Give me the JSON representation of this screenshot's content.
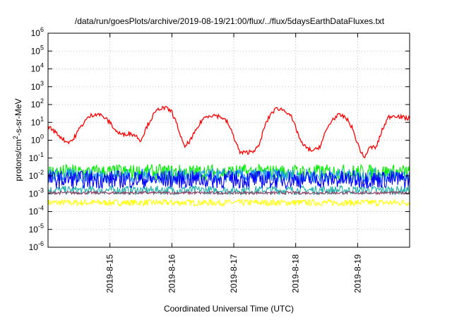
{
  "chart_data": {
    "type": "line",
    "title": "/data/run/goesPlots/archive/2019-08-19/21:00/flux/../flux/5daysEarthDataFluxes.txt",
    "xlabel": "Coordinated Universal Time (UTC)",
    "ylabel": {
      "prefix": "protons/cm",
      "sup": "2",
      "suffix": "-s-sr-MeV"
    },
    "yscale": "log",
    "ylim": [
      -6,
      6
    ],
    "xlim": [
      0,
      5.84
    ],
    "grid": true,
    "legend": "none",
    "yticks": [
      {
        "exp": -6,
        "base": "10",
        "sup": "-6"
      },
      {
        "exp": -5,
        "base": "10",
        "sup": "-5"
      },
      {
        "exp": -4,
        "base": "10",
        "sup": "-4"
      },
      {
        "exp": -3,
        "base": "10",
        "sup": "-3"
      },
      {
        "exp": -2,
        "base": "10",
        "sup": "-2"
      },
      {
        "exp": -1,
        "base": "10",
        "sup": "-1"
      },
      {
        "exp": 0,
        "base": "10",
        "sup": "0"
      },
      {
        "exp": 1,
        "base": "10",
        "sup": "1"
      },
      {
        "exp": 2,
        "base": "10",
        "sup": "2"
      },
      {
        "exp": 3,
        "base": "10",
        "sup": "3"
      },
      {
        "exp": 4,
        "base": "10",
        "sup": "4"
      },
      {
        "exp": 5,
        "base": "10",
        "sup": "5"
      },
      {
        "exp": 6,
        "base": "10",
        "sup": "6"
      }
    ],
    "xticks": [
      {
        "day": 1,
        "label": "2019-8-15"
      },
      {
        "day": 2,
        "label": "2019-8-16"
      },
      {
        "day": 3,
        "label": "2019-8-17"
      },
      {
        "day": 4,
        "label": "2019-8-18"
      },
      {
        "day": 5,
        "label": "2019-8-19"
      }
    ],
    "series": [
      {
        "color": "#ffff00",
        "x": [
          0,
          0.5,
          1,
          1.5,
          2,
          2.5,
          3,
          3.5,
          4,
          4.5,
          5,
          5.5,
          5.84
        ],
        "y": [
          -3.5,
          -3.5,
          -3.5,
          -3.5,
          -3.5,
          -3.5,
          -3.5,
          -3.5,
          -3.5,
          -3.5,
          -3.5,
          -3.5,
          -3.5
        ]
      },
      {
        "color": "#20b2aa",
        "x": [
          0,
          0.5,
          1,
          1.5,
          2,
          2.5,
          3,
          3.5,
          4,
          4.5,
          5,
          5.5,
          5.84
        ],
        "y": [
          -2.8,
          -2.8,
          -2.8,
          -2.8,
          -2.8,
          -2.8,
          -2.8,
          -2.8,
          -2.8,
          -2.8,
          -2.8,
          -2.8,
          -2.8
        ]
      },
      {
        "color": "#8b3a62",
        "x": [
          0,
          0.5,
          1,
          1.5,
          2,
          2.5,
          3,
          3.5,
          4,
          4.5,
          5,
          5.5,
          5.84
        ],
        "y": [
          -2.95,
          -2.95,
          -2.95,
          -2.95,
          -2.95,
          -2.95,
          -2.95,
          -2.95,
          -2.95,
          -2.95,
          -2.95,
          -2.95,
          -2.95
        ]
      },
      {
        "color": "#00ee00",
        "x": [
          0,
          0.5,
          1,
          1.5,
          2,
          2.5,
          3,
          3.5,
          4,
          4.5,
          5,
          5.5,
          5.84
        ],
        "y": [
          -1.8,
          -1.8,
          -1.8,
          -1.8,
          -1.8,
          -1.8,
          -1.8,
          -1.8,
          -1.8,
          -1.8,
          -1.8,
          -1.8,
          -1.8
        ]
      },
      {
        "color": "#1e90ff",
        "x": [
          0,
          0.5,
          1,
          1.5,
          2,
          2.5,
          3,
          3.5,
          4,
          4.5,
          5,
          5.5,
          5.84
        ],
        "y": [
          -2.0,
          -2.0,
          -2.0,
          -2.0,
          -2.0,
          -2.0,
          -2.0,
          -2.0,
          -2.0,
          -2.0,
          -2.0,
          -2.0,
          -2.0
        ]
      },
      {
        "color": "#0000ff",
        "x": [
          0,
          0.5,
          1,
          1.5,
          2,
          2.5,
          3,
          3.5,
          4,
          4.5,
          5,
          5.5,
          5.84
        ],
        "y": [
          -2.2,
          -2.2,
          -2.2,
          -2.2,
          -2.2,
          -2.2,
          -2.2,
          -2.2,
          -2.2,
          -2.2,
          -2.2,
          -2.2,
          -2.2
        ]
      },
      {
        "color": "#ff0000",
        "x": [
          0,
          0.1,
          0.2,
          0.3,
          0.4,
          0.5,
          0.6,
          0.7,
          0.8,
          0.9,
          1.0,
          1.1,
          1.2,
          1.3,
          1.4,
          1.5,
          1.6,
          1.7,
          1.8,
          1.9,
          2.0,
          2.1,
          2.2,
          2.3,
          2.4,
          2.5,
          2.6,
          2.7,
          2.8,
          2.9,
          3.0,
          3.1,
          3.2,
          3.3,
          3.4,
          3.5,
          3.6,
          3.7,
          3.8,
          3.9,
          4.0,
          4.1,
          4.2,
          4.3,
          4.4,
          4.5,
          4.6,
          4.7,
          4.8,
          4.9,
          5.0,
          5.1,
          5.2,
          5.3,
          5.4,
          5.5,
          5.6,
          5.7,
          5.84
        ],
        "y": [
          0.8,
          0.5,
          0.2,
          -0.1,
          0.0,
          0.6,
          1.1,
          1.4,
          1.5,
          1.3,
          1.0,
          0.5,
          0.3,
          0.4,
          0.3,
          0.0,
          0.8,
          1.4,
          1.8,
          1.8,
          1.6,
          0.7,
          -0.4,
          0.0,
          0.6,
          1.2,
          1.4,
          1.4,
          1.3,
          1.0,
          0.2,
          -0.7,
          -0.7,
          -0.6,
          -0.4,
          0.8,
          1.5,
          1.8,
          1.7,
          1.5,
          0.7,
          -0.2,
          -0.5,
          -0.6,
          -0.3,
          0.6,
          1.2,
          1.4,
          1.3,
          0.8,
          -0.2,
          -1.0,
          -0.4,
          -0.4,
          0.6,
          1.3,
          1.4,
          1.3,
          1.2
        ]
      }
    ]
  }
}
